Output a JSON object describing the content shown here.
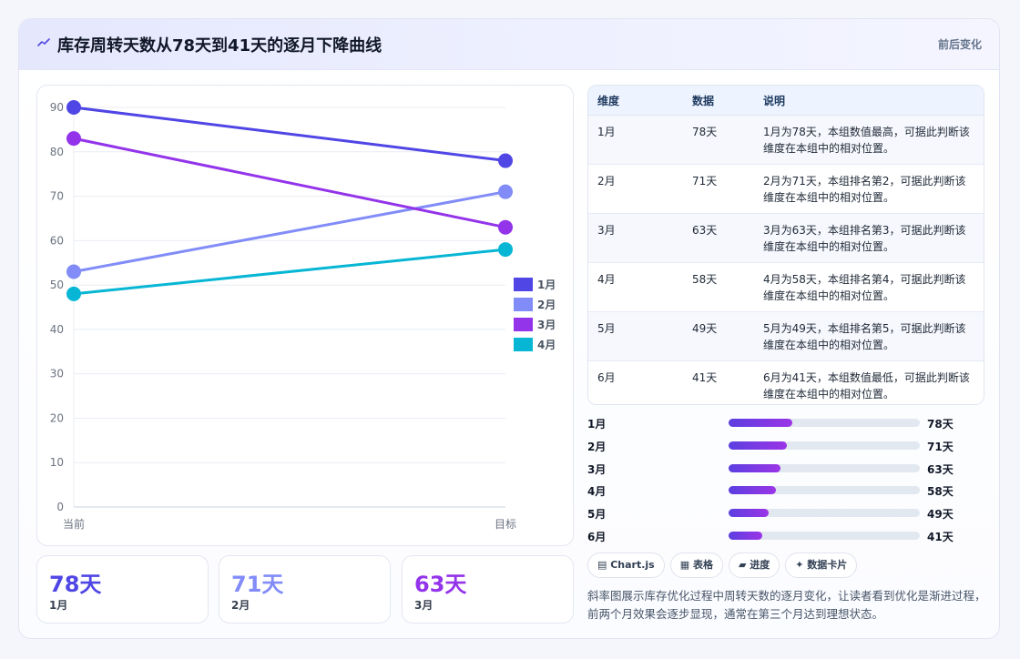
{
  "header": {
    "icon": "sparkline-icon",
    "title": "库存周转天数从78天到41天的逐月下降曲线",
    "tag": "前后变化"
  },
  "chart_data": {
    "type": "line",
    "chart_kind": "slope",
    "x": [
      "当前",
      "目标"
    ],
    "ylim": [
      0,
      90
    ],
    "yticks": [
      0,
      10,
      20,
      30,
      40,
      50,
      60,
      70,
      80,
      90
    ],
    "grid": true,
    "legend_position": "right",
    "series": [
      {
        "name": "1月",
        "values": [
          90,
          78
        ],
        "color": "#4f46e5"
      },
      {
        "name": "2月",
        "values": [
          53,
          71
        ],
        "color": "#818cf8"
      },
      {
        "name": "3月",
        "values": [
          83,
          63
        ],
        "color": "#9333ea"
      },
      {
        "name": "4月",
        "values": [
          48,
          58
        ],
        "color": "#06b6d4"
      }
    ]
  },
  "stats": [
    {
      "value": "78天",
      "label": "1月",
      "color": "#4f46e5"
    },
    {
      "value": "71天",
      "label": "2月",
      "color": "#818cf8"
    },
    {
      "value": "63天",
      "label": "3月",
      "color": "#9333ea"
    }
  ],
  "table": {
    "headers": [
      "维度",
      "数据",
      "说明"
    ],
    "rows": [
      [
        "1月",
        "78天",
        "1月为78天，本组数值最高，可据此判断该维度在本组中的相对位置。"
      ],
      [
        "2月",
        "71天",
        "2月为71天，本组排名第2，可据此判断该维度在本组中的相对位置。"
      ],
      [
        "3月",
        "63天",
        "3月为63天，本组排名第3，可据此判断该维度在本组中的相对位置。"
      ],
      [
        "4月",
        "58天",
        "4月为58天，本组排名第4，可据此判断该维度在本组中的相对位置。"
      ],
      [
        "5月",
        "49天",
        "5月为49天，本组排名第5，可据此判断该维度在本组中的相对位置。"
      ],
      [
        "6月",
        "41天",
        "6月为41天，本组数值最低，可据此判断该维度在本组中的相对位置。"
      ]
    ]
  },
  "progress": {
    "max": 234,
    "items": [
      {
        "label": "1月",
        "value": 78,
        "text": "78天"
      },
      {
        "label": "2月",
        "value": 71,
        "text": "71天"
      },
      {
        "label": "3月",
        "value": 63,
        "text": "63天"
      },
      {
        "label": "4月",
        "value": 58,
        "text": "58天"
      },
      {
        "label": "5月",
        "value": 49,
        "text": "49天"
      },
      {
        "label": "6月",
        "value": 41,
        "text": "41天"
      }
    ]
  },
  "chips": [
    "▤ Chart.js",
    "▦ 表格",
    "▰ 进度",
    "✦ 数据卡片"
  ],
  "description": "斜率图展示库存优化过程中周转天数的逐月变化，让读者看到优化是渐进过程，前两个月效果会逐步显现，通常在第三个月达到理想状态。"
}
